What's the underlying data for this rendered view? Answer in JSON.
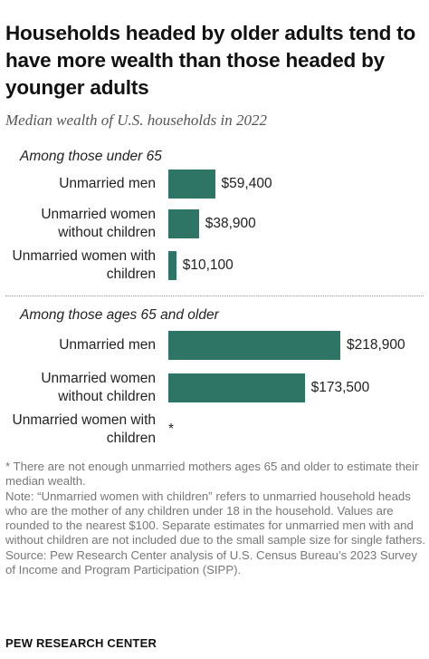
{
  "title": "Households headed by older adults tend to have more wealth than those headed by younger adults",
  "subtitle": "Median wealth of U.S. households in 2022",
  "chart_data": {
    "type": "bar",
    "orientation": "horizontal",
    "title": "Households headed by older adults tend to have more wealth than those headed by younger adults",
    "subtitle": "Median wealth of U.S. households in 2022",
    "xlim": [
      0,
      218900
    ],
    "grid": false,
    "legend": "none",
    "bar_color": "#2f7565",
    "groups": [
      {
        "label": "Among those under 65",
        "categories": [
          "Unmarried men",
          "Unmarried women without children",
          "Unmarried women with children"
        ],
        "values": [
          59400,
          38900,
          10100
        ],
        "value_labels": [
          "$59,400",
          "$38,900",
          "$10,100"
        ]
      },
      {
        "label": "Among those ages 65 and older",
        "categories": [
          "Unmarried men",
          "Unmarried women without children",
          "Unmarried women with children"
        ],
        "values": [
          218900,
          173500,
          null
        ],
        "value_labels": [
          "$218,900",
          "$173,500",
          "*"
        ]
      }
    ]
  },
  "notes": [
    "* There are not enough unmarried mothers ages 65 and older to estimate their median wealth.",
    "Note: “Unmarried women with children” refers to unmarried household heads who are the mother of any children under 18 in the household. Values are rounded to the nearest $100. Separate estimates for unmarried men with and without children are not included due to the small sample size for single fathers.",
    "Source: Pew Research Center analysis of U.S. Census Bureau’s 2023 Survey of Income and Program Participation (SIPP)."
  ],
  "footer": "PEW RESEARCH CENTER"
}
